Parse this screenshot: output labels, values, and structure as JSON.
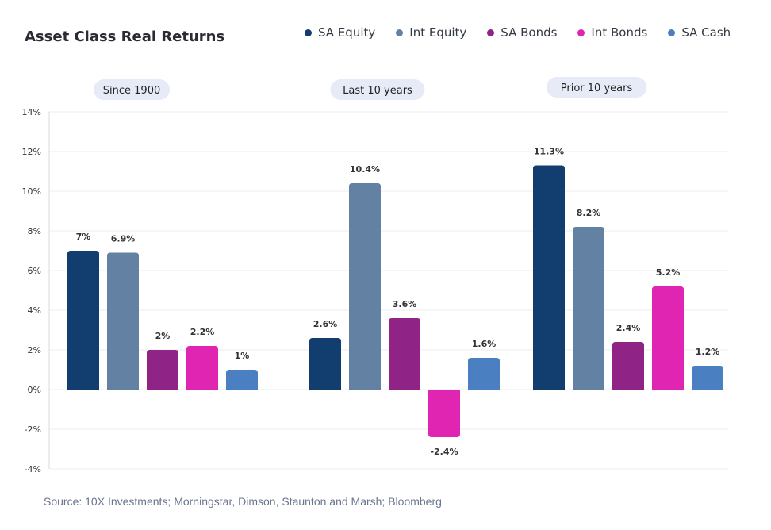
{
  "chart_data": {
    "type": "bar",
    "title": "Asset Class Real Returns",
    "categories": [
      "Since 1900",
      "Last 10 years",
      "Prior 10 years"
    ],
    "series": [
      {
        "name": "SA Equity",
        "color": "#123d6f",
        "values": [
          7,
          2.6,
          11.3
        ],
        "labels": [
          "7%",
          "2.6%",
          "11.3%"
        ]
      },
      {
        "name": "Int Equity",
        "color": "#6381a3",
        "values": [
          6.9,
          10.4,
          8.2
        ],
        "labels": [
          "6.9%",
          "10.4%",
          "8.2%"
        ]
      },
      {
        "name": "SA Bonds",
        "color": "#8f2386",
        "values": [
          2,
          3.6,
          2.4
        ],
        "labels": [
          "2%",
          "3.6%",
          "2.4%"
        ]
      },
      {
        "name": "Int Bonds",
        "color": "#e025b2",
        "values": [
          2.2,
          -2.4,
          5.2
        ],
        "labels": [
          "2.2%",
          "-2.4%",
          "5.2%"
        ]
      },
      {
        "name": "SA Cash",
        "color": "#4a7fc1",
        "values": [
          1,
          1.6,
          1.2
        ],
        "labels": [
          "1%",
          "1.6%",
          "1.2%"
        ]
      }
    ],
    "ylim": [
      -4,
      14
    ],
    "yticks": [
      "14%",
      "12%",
      "10%",
      "8%",
      "6%",
      "4%",
      "2%",
      "0%",
      "-2%",
      "-4%"
    ],
    "ytick_values": [
      14,
      12,
      10,
      8,
      6,
      4,
      2,
      0,
      -2,
      -4
    ],
    "grid": true,
    "legend": "top-right",
    "source": "Source: 10X Investments; Morningstar, Dimson, Staunton and Marsh; Bloomberg"
  }
}
